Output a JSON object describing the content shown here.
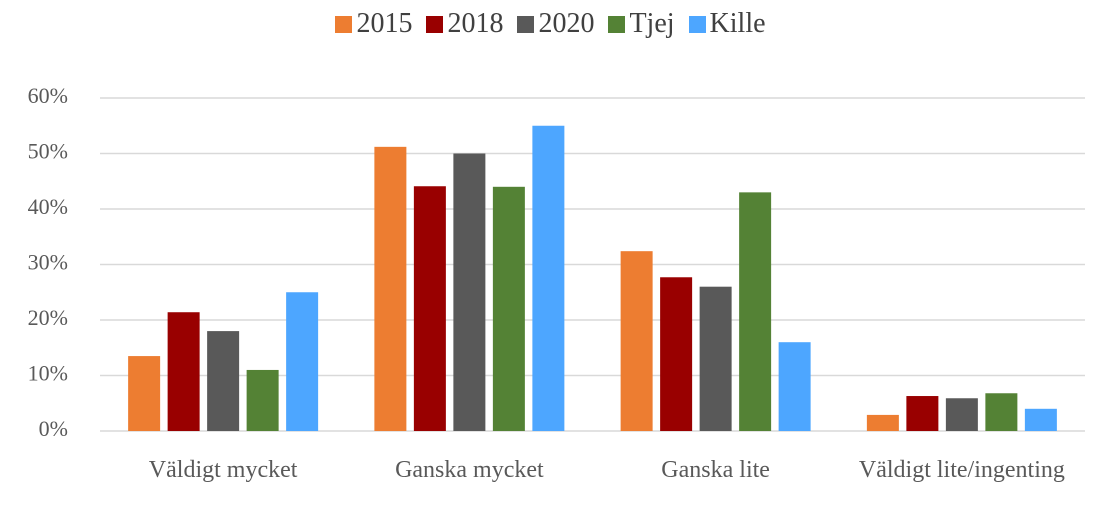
{
  "chart_data": {
    "type": "bar",
    "categories": [
      "Väldigt mycket",
      "Ganska mycket",
      "Ganska lite",
      "Väldigt lite/ingenting"
    ],
    "series": [
      {
        "name": "2015",
        "color": "#ED7D31",
        "values": [
          13.5,
          51.2,
          32.4,
          2.9
        ]
      },
      {
        "name": "2018",
        "color": "#990000",
        "values": [
          21.4,
          44.1,
          27.7,
          6.3
        ]
      },
      {
        "name": "2020",
        "color": "#595959",
        "values": [
          18,
          50,
          26,
          5.9
        ]
      },
      {
        "name": "Tjej",
        "color": "#548235",
        "values": [
          11,
          44,
          43,
          6.8
        ]
      },
      {
        "name": "Kille",
        "color": "#4DA6FF",
        "values": [
          25,
          55,
          16,
          4
        ]
      }
    ],
    "ylim": [
      0,
      60
    ],
    "yticks": [
      {
        "value": 0,
        "label": "0%"
      },
      {
        "value": 10,
        "label": "10%"
      },
      {
        "value": 20,
        "label": "20%"
      },
      {
        "value": 30,
        "label": "30%"
      },
      {
        "value": 40,
        "label": "40%"
      },
      {
        "value": 50,
        "label": "50%"
      },
      {
        "value": 60,
        "label": "60%"
      }
    ],
    "grid": true,
    "legend": "top"
  }
}
